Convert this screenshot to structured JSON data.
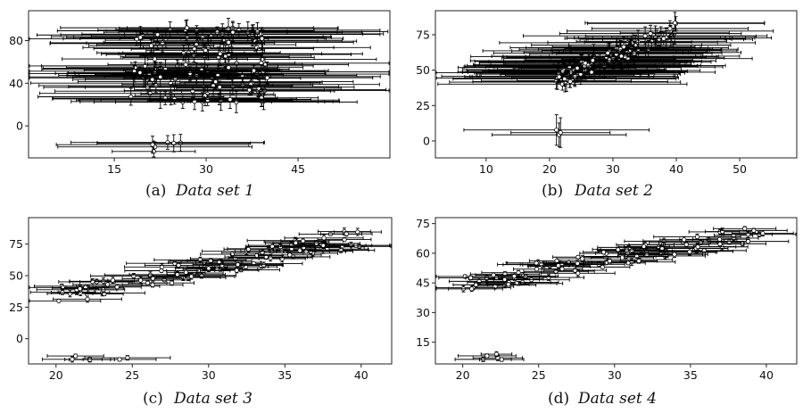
{
  "chart_data": [
    {
      "type": "scatter",
      "caption_label": "(a)",
      "caption_title": "Data set 1",
      "xticks": [
        15,
        30,
        45
      ],
      "yticks": [
        0,
        40,
        80
      ],
      "xlim": [
        1,
        60
      ],
      "ylim": [
        -30,
        108
      ],
      "error_bars": true,
      "grid": false,
      "main_cluster": {
        "x_range": [
          17,
          40
        ],
        "y_range": [
          22,
          92
        ],
        "trend": "flat",
        "x_err": 16,
        "y_err": 8,
        "count": 130
      },
      "outlier_cluster": {
        "x_range": [
          21,
          26
        ],
        "y_range": [
          -24,
          -14
        ],
        "x_err": 12,
        "y_err": 7,
        "count": 6
      }
    },
    {
      "type": "scatter",
      "caption_label": "(b)",
      "caption_title": "Data set 2",
      "xticks": [
        10,
        20,
        30,
        40,
        50
      ],
      "yticks": [
        0,
        25,
        50,
        75
      ],
      "xlim": [
        2,
        59
      ],
      "ylim": [
        -12,
        92
      ],
      "error_bars": true,
      "grid": false,
      "main_cluster": {
        "x_range": [
          21,
          40
        ],
        "y_range": [
          40,
          85
        ],
        "trend": "increasing",
        "x_err": 14,
        "y_err": 6,
        "count": 120
      },
      "outlier_cluster": {
        "x_range": [
          21,
          22
        ],
        "y_range": [
          0,
          8
        ],
        "x_err": 14,
        "y_err": 8,
        "count": 3
      }
    },
    {
      "type": "scatter",
      "caption_label": "(c)",
      "caption_title": "Data set 3",
      "xticks": [
        20,
        25,
        30,
        35,
        40
      ],
      "yticks": [
        0,
        25,
        50,
        75
      ],
      "xlim": [
        18.2,
        42
      ],
      "ylim": [
        -20,
        96
      ],
      "error_bars": true,
      "grid": false,
      "main_cluster": {
        "x_range": [
          20,
          40
        ],
        "y_range": [
          30,
          90
        ],
        "trend": "increasing",
        "x_err": 2.2,
        "y_err": 2,
        "count": 110
      },
      "outlier_cluster": {
        "x_range": [
          21,
          25
        ],
        "y_range": [
          -18,
          -13
        ],
        "x_err": 2,
        "y_err": 1.5,
        "count": 6
      }
    },
    {
      "type": "scatter",
      "caption_label": "(d)",
      "caption_title": "Data set 4",
      "xticks": [
        20,
        25,
        30,
        35,
        40
      ],
      "yticks": [
        15,
        30,
        45,
        60,
        75
      ],
      "xlim": [
        18.2,
        42
      ],
      "ylim": [
        4,
        78
      ],
      "error_bars": true,
      "grid": false,
      "main_cluster": {
        "x_range": [
          20,
          40
        ],
        "y_range": [
          42,
          76
        ],
        "trend": "increasing",
        "x_err": 2,
        "y_err": 1.2,
        "count": 110
      },
      "outlier_cluster": {
        "x_range": [
          20.5,
          23.5
        ],
        "y_range": [
          5,
          9
        ],
        "x_err": 1.8,
        "y_err": 1,
        "count": 5
      }
    }
  ]
}
